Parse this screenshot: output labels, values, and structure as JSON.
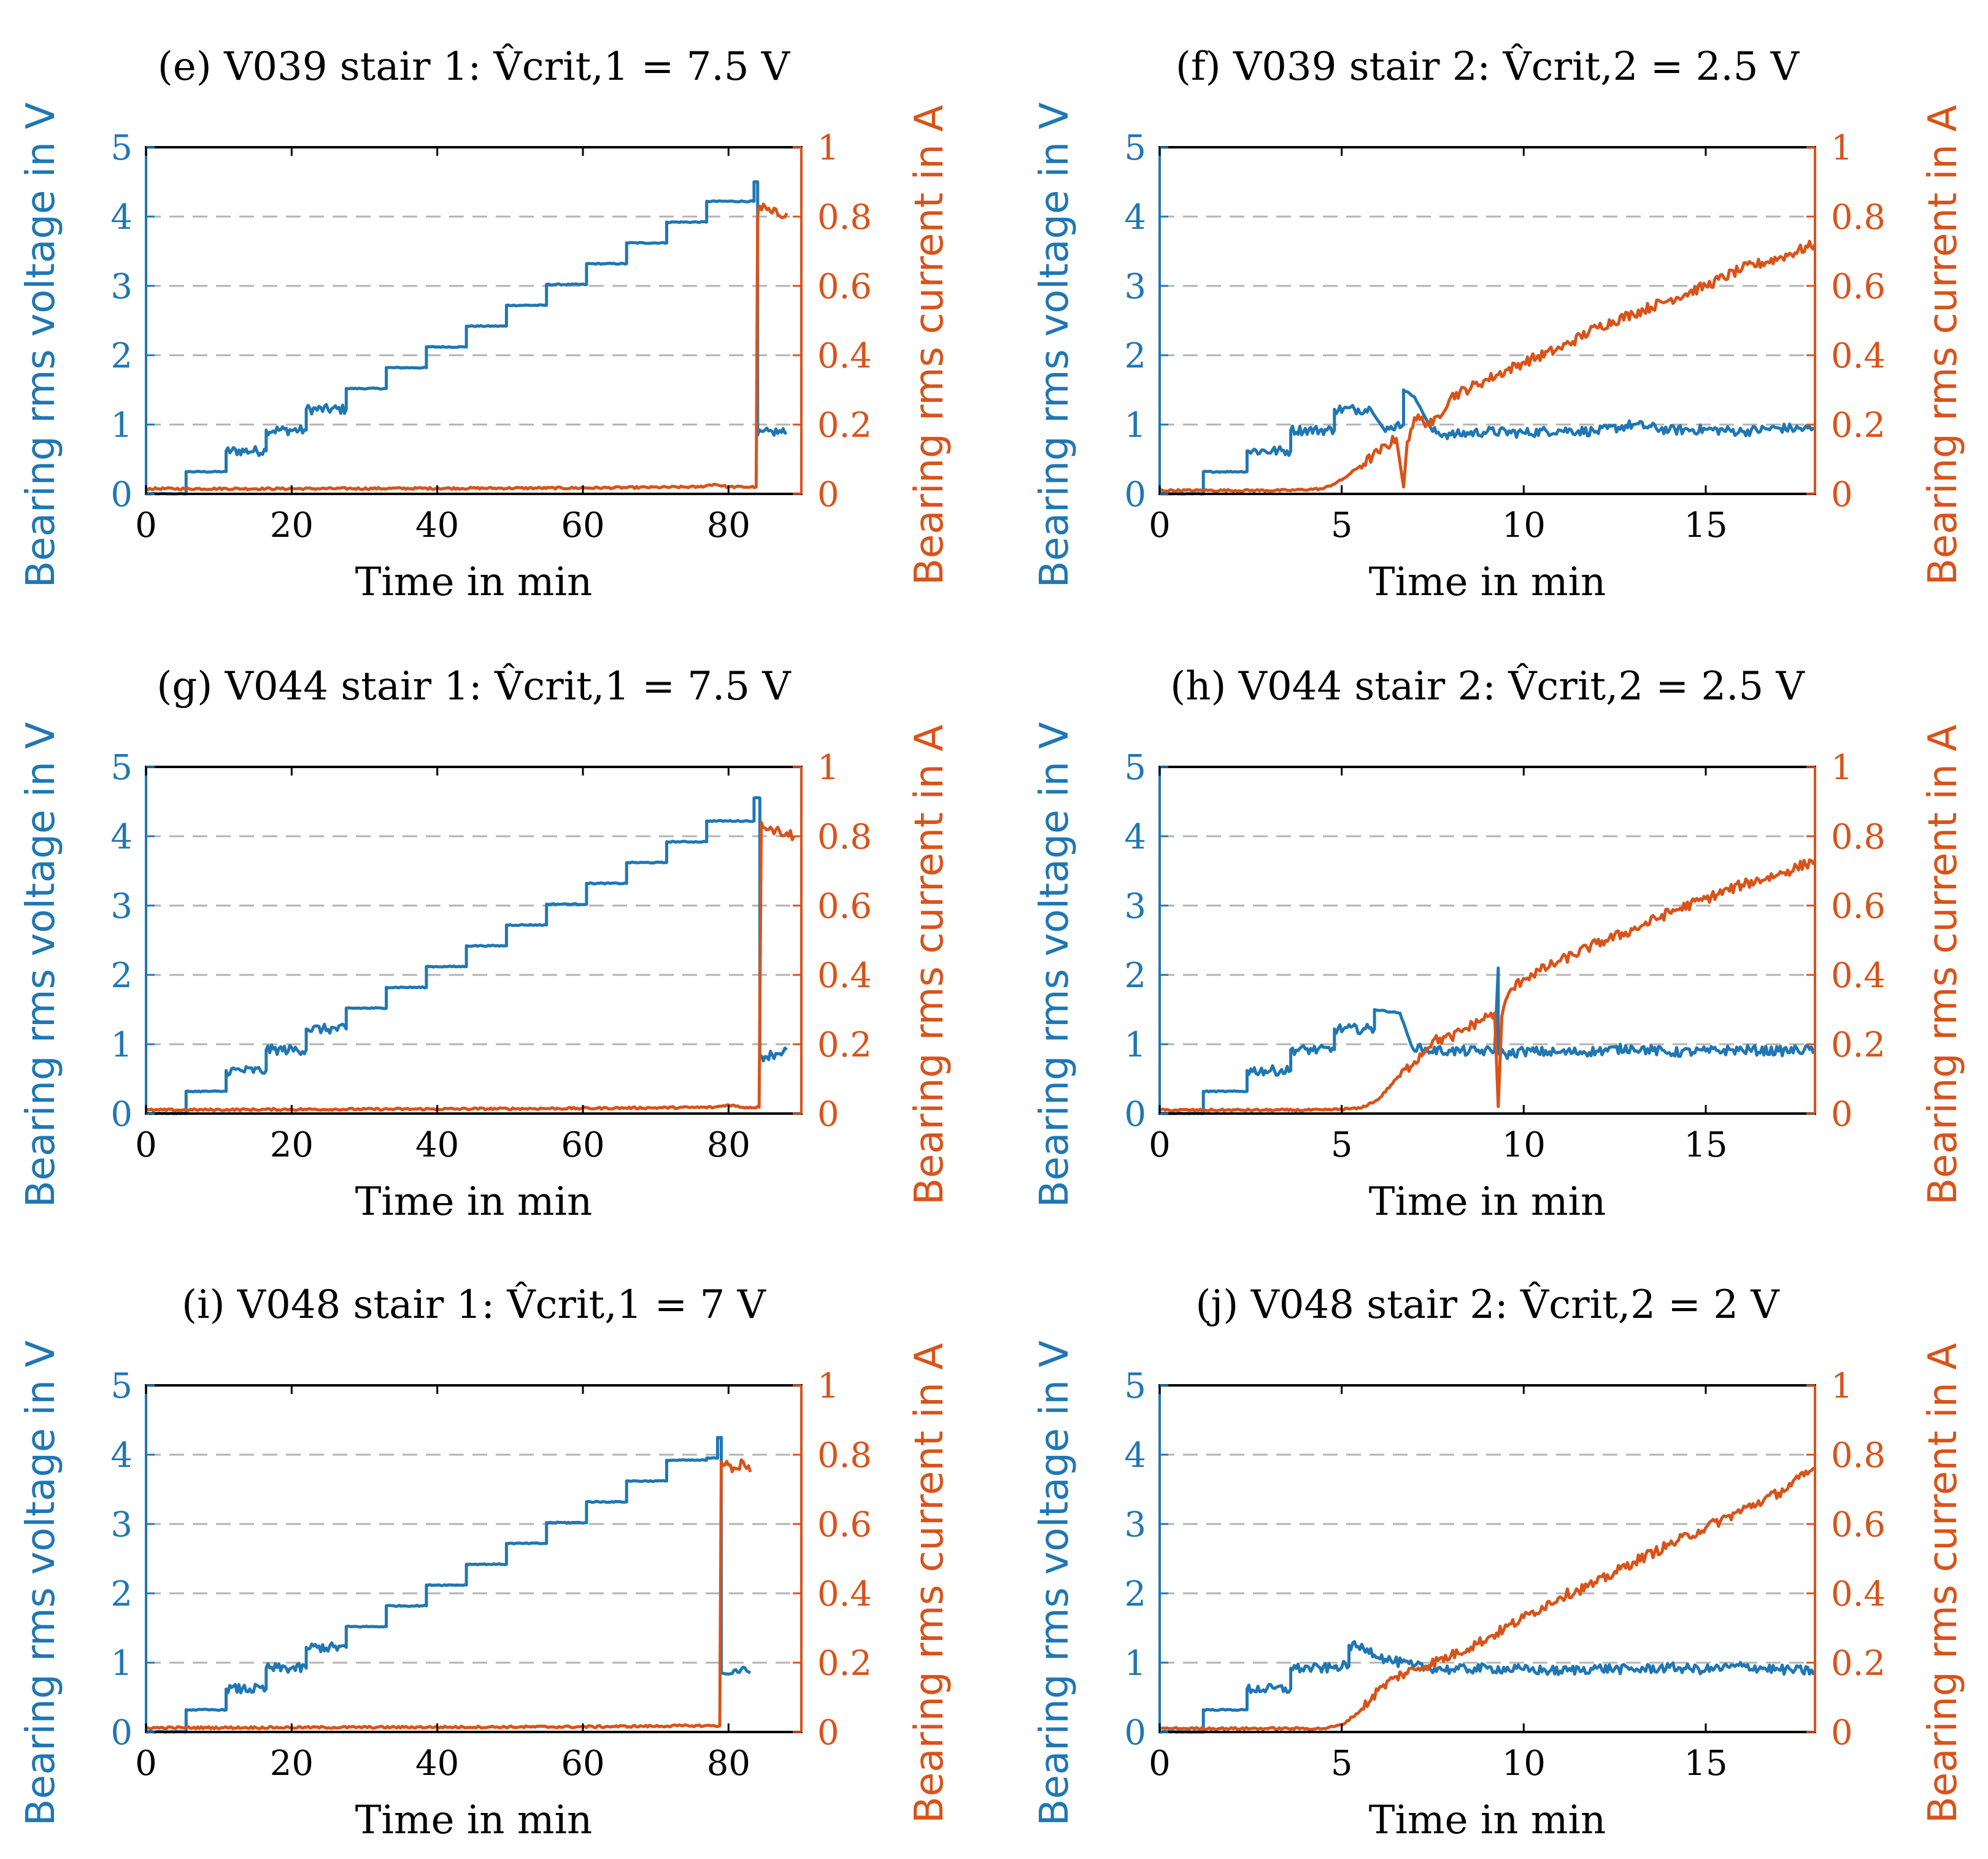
{
  "colors": {
    "voltage": "#1f77b4",
    "current": "#d95319",
    "grid": "#b3b3b3"
  },
  "chart_data": [
    {
      "type": "line",
      "title": "(e) V039 stair 1: V̂crit,1 = 7.5 V",
      "xlabel": "Time in min",
      "ylabel": "Bearing rms voltage in V",
      "ylabel_right": "Bearing rms current in A",
      "xlim": [
        0,
        90
      ],
      "ylim": [
        0,
        5
      ],
      "ylim_right": [
        0,
        1
      ],
      "xticks": [
        "0",
        "20",
        "40",
        "60",
        "80"
      ],
      "yticks": [
        "0",
        "1",
        "2",
        "3",
        "4",
        "5"
      ],
      "yticks_right": [
        "0",
        "0.2",
        "0.4",
        "0.6",
        "0.8",
        "1"
      ],
      "grid": true,
      "series": [
        {
          "name": "Bearing rms voltage",
          "axis": "left",
          "x": [
            0,
            5.5,
            5.5,
            11,
            11,
            16.5,
            16.5,
            22,
            22,
            27.5,
            27.5,
            33,
            33,
            38.5,
            38.5,
            44,
            44,
            49.5,
            49.5,
            55,
            55,
            60.5,
            60.5,
            66,
            66,
            71.5,
            71.5,
            77,
            77,
            83.5,
            83.5,
            84,
            84,
            86,
            88
          ],
          "y": [
            0,
            0,
            0.32,
            0.32,
            0.62,
            0.62,
            0.92,
            0.92,
            1.22,
            1.22,
            1.52,
            1.52,
            1.82,
            1.82,
            2.12,
            2.12,
            2.42,
            2.42,
            2.72,
            2.72,
            3.02,
            3.02,
            3.32,
            3.32,
            3.62,
            3.62,
            3.92,
            3.92,
            4.22,
            4.22,
            4.5,
            4.5,
            0.85,
            0.9,
            0.88
          ]
        },
        {
          "name": "Bearing rms current",
          "axis": "right",
          "x": [
            0,
            20,
            40,
            60,
            76,
            78,
            80,
            83.8,
            84,
            84.3,
            86,
            88
          ],
          "y": [
            0.015,
            0.015,
            0.016,
            0.017,
            0.02,
            0.028,
            0.02,
            0.02,
            0.8,
            0.83,
            0.81,
            0.81
          ]
        }
      ]
    },
    {
      "type": "line",
      "title": "(f) V039 stair 2: V̂crit,2 = 2.5 V",
      "xlabel": "Time in min",
      "ylabel": "Bearing rms voltage in V",
      "ylabel_right": "Bearing rms current in A",
      "xlim": [
        0,
        18
      ],
      "ylim": [
        0,
        5
      ],
      "ylim_right": [
        0,
        1
      ],
      "xticks": [
        "0",
        "5",
        "10",
        "15"
      ],
      "yticks": [
        "0",
        "1",
        "2",
        "3",
        "4",
        "5"
      ],
      "yticks_right": [
        "0",
        "0.2",
        "0.4",
        "0.6",
        "0.8",
        "1"
      ],
      "grid": true,
      "series": [
        {
          "name": "Bearing rms voltage",
          "axis": "left",
          "x": [
            0,
            1.2,
            1.2,
            2.4,
            2.4,
            3.6,
            3.6,
            4.8,
            4.8,
            5.8,
            6.2,
            6.5,
            6.7,
            6.7,
            7,
            7.5,
            8,
            9,
            10,
            11,
            12,
            13,
            14,
            15,
            16,
            17,
            18
          ],
          "y": [
            0,
            0,
            0.32,
            0.32,
            0.62,
            0.62,
            0.92,
            0.92,
            1.22,
            1.22,
            0.9,
            1.0,
            1.0,
            1.5,
            1.4,
            0.9,
            0.85,
            0.9,
            0.88,
            0.92,
            0.9,
            1.0,
            0.92,
            0.93,
            0.9,
            0.95,
            0.93
          ]
        },
        {
          "name": "Bearing rms current",
          "axis": "right",
          "x": [
            0,
            3.5,
            4.5,
            5,
            5.5,
            6,
            6.5,
            6.7,
            6.8,
            7,
            7.5,
            8,
            9,
            10,
            11,
            12,
            13,
            14,
            15,
            16,
            17,
            18
          ],
          "y": [
            0.01,
            0.01,
            0.015,
            0.04,
            0.08,
            0.12,
            0.16,
            0.02,
            0.15,
            0.22,
            0.2,
            0.28,
            0.33,
            0.38,
            0.42,
            0.48,
            0.52,
            0.56,
            0.6,
            0.65,
            0.68,
            0.72
          ]
        }
      ]
    },
    {
      "type": "line",
      "title": "(g) V044 stair 1: V̂crit,1 = 7.5 V",
      "xlabel": "Time in min",
      "ylabel": "Bearing rms voltage in V",
      "ylabel_right": "Bearing rms current in A",
      "xlim": [
        0,
        90
      ],
      "ylim": [
        0,
        5
      ],
      "ylim_right": [
        0,
        1
      ],
      "xticks": [
        "0",
        "20",
        "40",
        "60",
        "80"
      ],
      "yticks": [
        "0",
        "1",
        "2",
        "3",
        "4",
        "5"
      ],
      "yticks_right": [
        "0",
        "0.2",
        "0.4",
        "0.6",
        "0.8",
        "1"
      ],
      "grid": true,
      "series": [
        {
          "name": "Bearing rms voltage",
          "axis": "left",
          "x": [
            0,
            5.5,
            5.5,
            11,
            11,
            16.5,
            16.5,
            22,
            22,
            27.5,
            27.5,
            33,
            33,
            38.5,
            38.5,
            44,
            44,
            49.5,
            49.5,
            55,
            55,
            60.5,
            60.5,
            66,
            66,
            71.5,
            71.5,
            77,
            77,
            83.5,
            83.5,
            84.3,
            84.3,
            86,
            88
          ],
          "y": [
            0,
            0,
            0.32,
            0.32,
            0.62,
            0.62,
            0.92,
            0.92,
            1.22,
            1.22,
            1.52,
            1.52,
            1.82,
            1.82,
            2.12,
            2.12,
            2.42,
            2.42,
            2.72,
            2.72,
            3.02,
            3.02,
            3.32,
            3.32,
            3.62,
            3.62,
            3.92,
            3.92,
            4.22,
            4.22,
            4.55,
            4.55,
            0.82,
            0.85,
            0.92
          ]
        },
        {
          "name": "Bearing rms current",
          "axis": "right",
          "x": [
            0,
            20,
            40,
            60,
            78,
            80,
            82,
            84.2,
            84.5,
            86,
            88,
            89
          ],
          "y": [
            0.01,
            0.012,
            0.013,
            0.015,
            0.018,
            0.025,
            0.018,
            0.018,
            0.84,
            0.82,
            0.81,
            0.8
          ]
        }
      ]
    },
    {
      "type": "line",
      "title": "(h) V044 stair 2: V̂crit,2 = 2.5 V",
      "xlabel": "Time in min",
      "ylabel": "Bearing rms voltage in V",
      "ylabel_right": "Bearing rms current in A",
      "xlim": [
        0,
        18
      ],
      "ylim": [
        0,
        5
      ],
      "ylim_right": [
        0,
        1
      ],
      "xticks": [
        "0",
        "5",
        "10",
        "15"
      ],
      "yticks": [
        "0",
        "1",
        "2",
        "3",
        "4",
        "5"
      ],
      "yticks_right": [
        "0",
        "0.2",
        "0.4",
        "0.6",
        "0.8",
        "1"
      ],
      "grid": true,
      "series": [
        {
          "name": "Bearing rms voltage",
          "axis": "left",
          "x": [
            0,
            1.2,
            1.2,
            2.4,
            2.4,
            3.6,
            3.6,
            4.8,
            4.8,
            5.9,
            5.9,
            6.6,
            6.9,
            7.2,
            8,
            9.2,
            9.3,
            9.3,
            9.5,
            10,
            11,
            12,
            13,
            14,
            15,
            16,
            17,
            18
          ],
          "y": [
            0,
            0,
            0.32,
            0.32,
            0.62,
            0.62,
            0.92,
            0.92,
            1.22,
            1.22,
            1.5,
            1.45,
            1.0,
            0.92,
            0.9,
            0.9,
            2.1,
            0.9,
            0.85,
            0.9,
            0.88,
            0.9,
            0.95,
            0.88,
            0.9,
            0.92,
            0.9,
            0.93
          ]
        },
        {
          "name": "Bearing rms current",
          "axis": "right",
          "x": [
            0,
            4.5,
            5.5,
            6,
            6.5,
            7,
            7.5,
            8,
            9,
            9.2,
            9.3,
            9.4,
            9.6,
            10,
            11,
            12,
            13,
            14,
            15,
            16,
            17,
            18
          ],
          "y": [
            0.01,
            0.01,
            0.015,
            0.04,
            0.1,
            0.15,
            0.21,
            0.22,
            0.28,
            0.29,
            0.02,
            0.28,
            0.35,
            0.39,
            0.44,
            0.49,
            0.53,
            0.58,
            0.62,
            0.66,
            0.69,
            0.73
          ]
        }
      ]
    },
    {
      "type": "line",
      "title": "(i) V048 stair 1: V̂crit,1 = 7 V",
      "xlabel": "Time in min",
      "ylabel": "Bearing rms voltage in V",
      "ylabel_right": "Bearing rms current in A",
      "xlim": [
        0,
        90
      ],
      "ylim": [
        0,
        5
      ],
      "ylim_right": [
        0,
        1
      ],
      "xticks": [
        "0",
        "20",
        "40",
        "60",
        "80"
      ],
      "yticks": [
        "0",
        "1",
        "2",
        "3",
        "4",
        "5"
      ],
      "yticks_right": [
        "0",
        "0.2",
        "0.4",
        "0.6",
        "0.8",
        "1"
      ],
      "grid": true,
      "series": [
        {
          "name": "Bearing rms voltage",
          "axis": "left",
          "x": [
            0,
            5.5,
            5.5,
            11,
            11,
            16.5,
            16.5,
            22,
            22,
            27.5,
            27.5,
            33,
            33,
            38.5,
            38.5,
            44,
            44,
            49.5,
            49.5,
            55,
            55,
            60.5,
            60.5,
            66,
            66,
            71.5,
            71.5,
            77,
            77,
            78.5,
            78.5,
            79,
            79,
            81,
            83
          ],
          "y": [
            0,
            0,
            0.32,
            0.32,
            0.62,
            0.62,
            0.92,
            0.92,
            1.22,
            1.22,
            1.52,
            1.52,
            1.82,
            1.82,
            2.12,
            2.12,
            2.42,
            2.42,
            2.72,
            2.72,
            3.02,
            3.02,
            3.32,
            3.32,
            3.62,
            3.62,
            3.92,
            3.92,
            3.95,
            3.95,
            4.25,
            4.25,
            0.85,
            0.9,
            0.85
          ]
        },
        {
          "name": "Bearing rms current",
          "axis": "right",
          "x": [
            0,
            20,
            40,
            60,
            75,
            78.8,
            79,
            79.5,
            81,
            82,
            83
          ],
          "y": [
            0.012,
            0.013,
            0.014,
            0.015,
            0.018,
            0.018,
            0.78,
            0.77,
            0.76,
            0.78,
            0.75
          ]
        }
      ]
    },
    {
      "type": "line",
      "title": "(j) V048 stair 2: V̂crit,2 = 2 V",
      "xlabel": "Time in min",
      "ylabel": "Bearing rms voltage in V",
      "ylabel_right": "Bearing rms current in A",
      "xlim": [
        0,
        18
      ],
      "ylim": [
        0,
        5
      ],
      "ylim_right": [
        0,
        1
      ],
      "xticks": [
        "0",
        "5",
        "10",
        "15"
      ],
      "yticks": [
        "0",
        "1",
        "2",
        "3",
        "4",
        "5"
      ],
      "yticks_right": [
        "0",
        "0.2",
        "0.4",
        "0.6",
        "0.8",
        "1"
      ],
      "grid": true,
      "series": [
        {
          "name": "Bearing rms voltage",
          "axis": "left",
          "x": [
            0,
            1.2,
            1.2,
            2.4,
            2.4,
            3.6,
            3.6,
            4.8,
            4.8,
            5.2,
            5.2,
            5.7,
            6.2,
            7,
            8,
            9,
            10,
            11,
            12,
            13,
            14,
            15,
            16,
            17,
            18
          ],
          "y": [
            0,
            0,
            0.32,
            0.32,
            0.62,
            0.62,
            0.92,
            0.92,
            0.95,
            0.95,
            1.25,
            1.2,
            1.05,
            0.95,
            0.9,
            0.92,
            0.9,
            0.88,
            0.92,
            0.9,
            0.93,
            0.9,
            0.95,
            0.9,
            0.88
          ]
        },
        {
          "name": "Bearing rms current",
          "axis": "right",
          "x": [
            0,
            4.5,
            5,
            5.5,
            6,
            6.5,
            7,
            8,
            9,
            10,
            11,
            12,
            13,
            14,
            15,
            16,
            17,
            18
          ],
          "y": [
            0.01,
            0.01,
            0.02,
            0.06,
            0.12,
            0.16,
            0.18,
            0.22,
            0.27,
            0.33,
            0.39,
            0.43,
            0.49,
            0.54,
            0.59,
            0.64,
            0.69,
            0.76
          ]
        }
      ]
    }
  ]
}
